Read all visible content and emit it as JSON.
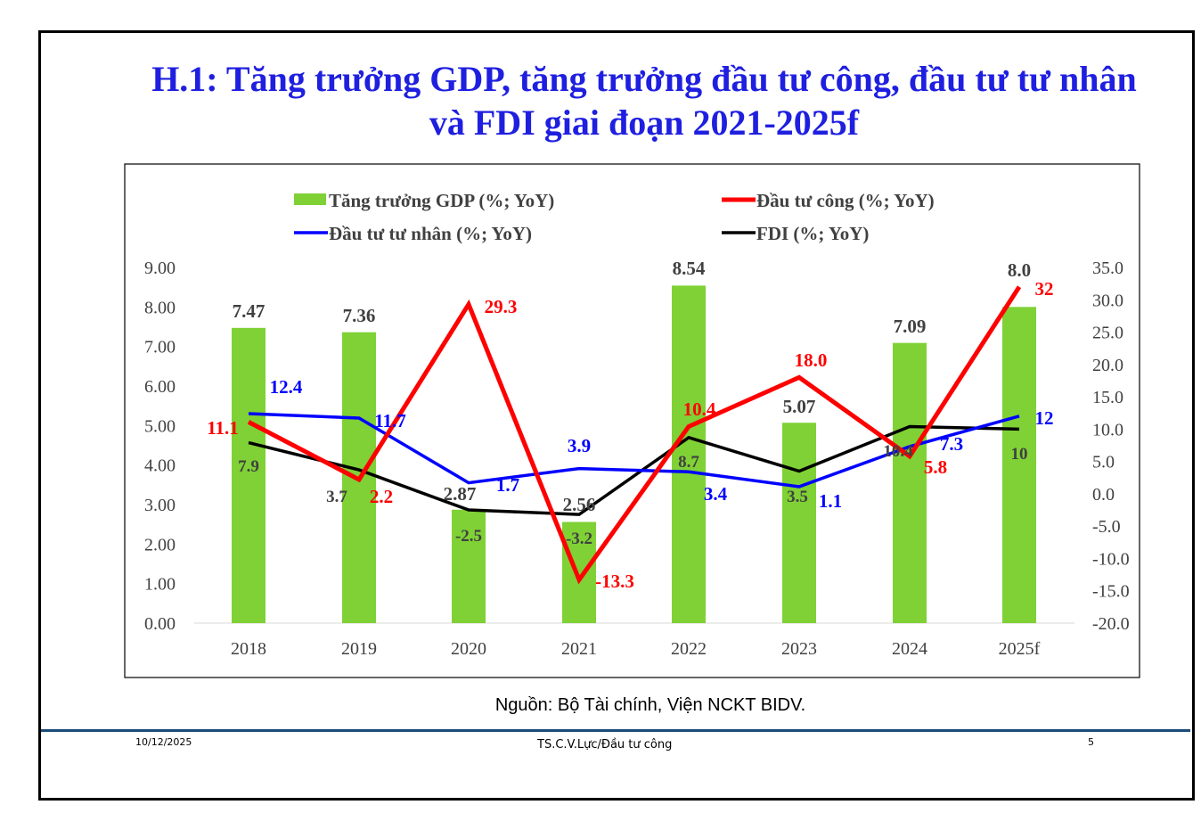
{
  "title_line1": "H.1: Tăng trưởng GDP, tăng trưởng đầu tư công, đầu tư tư nhân",
  "title_line2": "và FDI giai đoạn 2021-2025f",
  "source": "Nguồn: Bộ Tài chính, Viện NCKT BIDV.",
  "footer": {
    "date": "10/12/2025",
    "center": "TS.C.V.Lực/Đầu tư công",
    "page": "5"
  },
  "chart_data": {
    "type": "bar+line",
    "categories": [
      "2018",
      "2019",
      "2020",
      "2021",
      "2022",
      "2023",
      "2024",
      "2025f"
    ],
    "legend_position": "top",
    "grid": false,
    "y_left": {
      "range": [
        0,
        9
      ],
      "ticks": [
        "0.00",
        "1.00",
        "2.00",
        "3.00",
        "4.00",
        "5.00",
        "6.00",
        "7.00",
        "8.00",
        "9.00"
      ]
    },
    "y_right": {
      "range": [
        -20,
        35
      ],
      "ticks": [
        "-20.0",
        "-15.0",
        "-10.0",
        "-5.0",
        "0.0",
        "5.0",
        "10.0",
        "15.0",
        "20.0",
        "25.0",
        "30.0",
        "35.0"
      ]
    },
    "series": [
      {
        "name": "Tăng trưởng GDP (%; YoY)",
        "type": "bar",
        "axis": "left",
        "color": "#7fd135",
        "label_color": "#404040",
        "values": [
          7.47,
          7.36,
          2.87,
          2.56,
          8.54,
          5.07,
          7.09,
          8.0
        ],
        "labels": [
          "7.47",
          "7.36",
          "2.87",
          "2.56",
          "8.54",
          "5.07",
          "7.09",
          "8.0"
        ]
      },
      {
        "name": "Đầu tư công (%; YoY)",
        "type": "line",
        "axis": "right",
        "color": "#ff0000",
        "label_color": "#ff0000",
        "values": [
          11.1,
          2.2,
          29.3,
          -13.3,
          10.4,
          18.0,
          5.8,
          32
        ],
        "labels": [
          "11.1",
          "2.2",
          "29.3",
          "-13.3",
          "10.4",
          "18.0",
          "5.8",
          "32"
        ]
      },
      {
        "name": "Đầu tư tư nhân (%; YoY)",
        "type": "line",
        "axis": "right",
        "color": "#0000ff",
        "label_color": "#0000ff",
        "values": [
          12.4,
          11.7,
          1.7,
          3.9,
          3.4,
          1.1,
          7.3,
          12
        ],
        "labels": [
          "12.4",
          "11.7",
          "1.7",
          "3.9",
          "3.4",
          "1.1",
          "7.3",
          "12"
        ]
      },
      {
        "name": "FDI (%; YoY)",
        "type": "line",
        "axis": "right",
        "color": "#000000",
        "label_color": "#404040",
        "values": [
          7.9,
          3.7,
          -2.5,
          -3.2,
          8.7,
          3.5,
          10.4,
          10
        ],
        "labels": [
          "7.9",
          "3.7",
          "-2.5",
          "-3.2",
          "8.7",
          "3.5",
          "10.4",
          "10"
        ]
      }
    ]
  }
}
